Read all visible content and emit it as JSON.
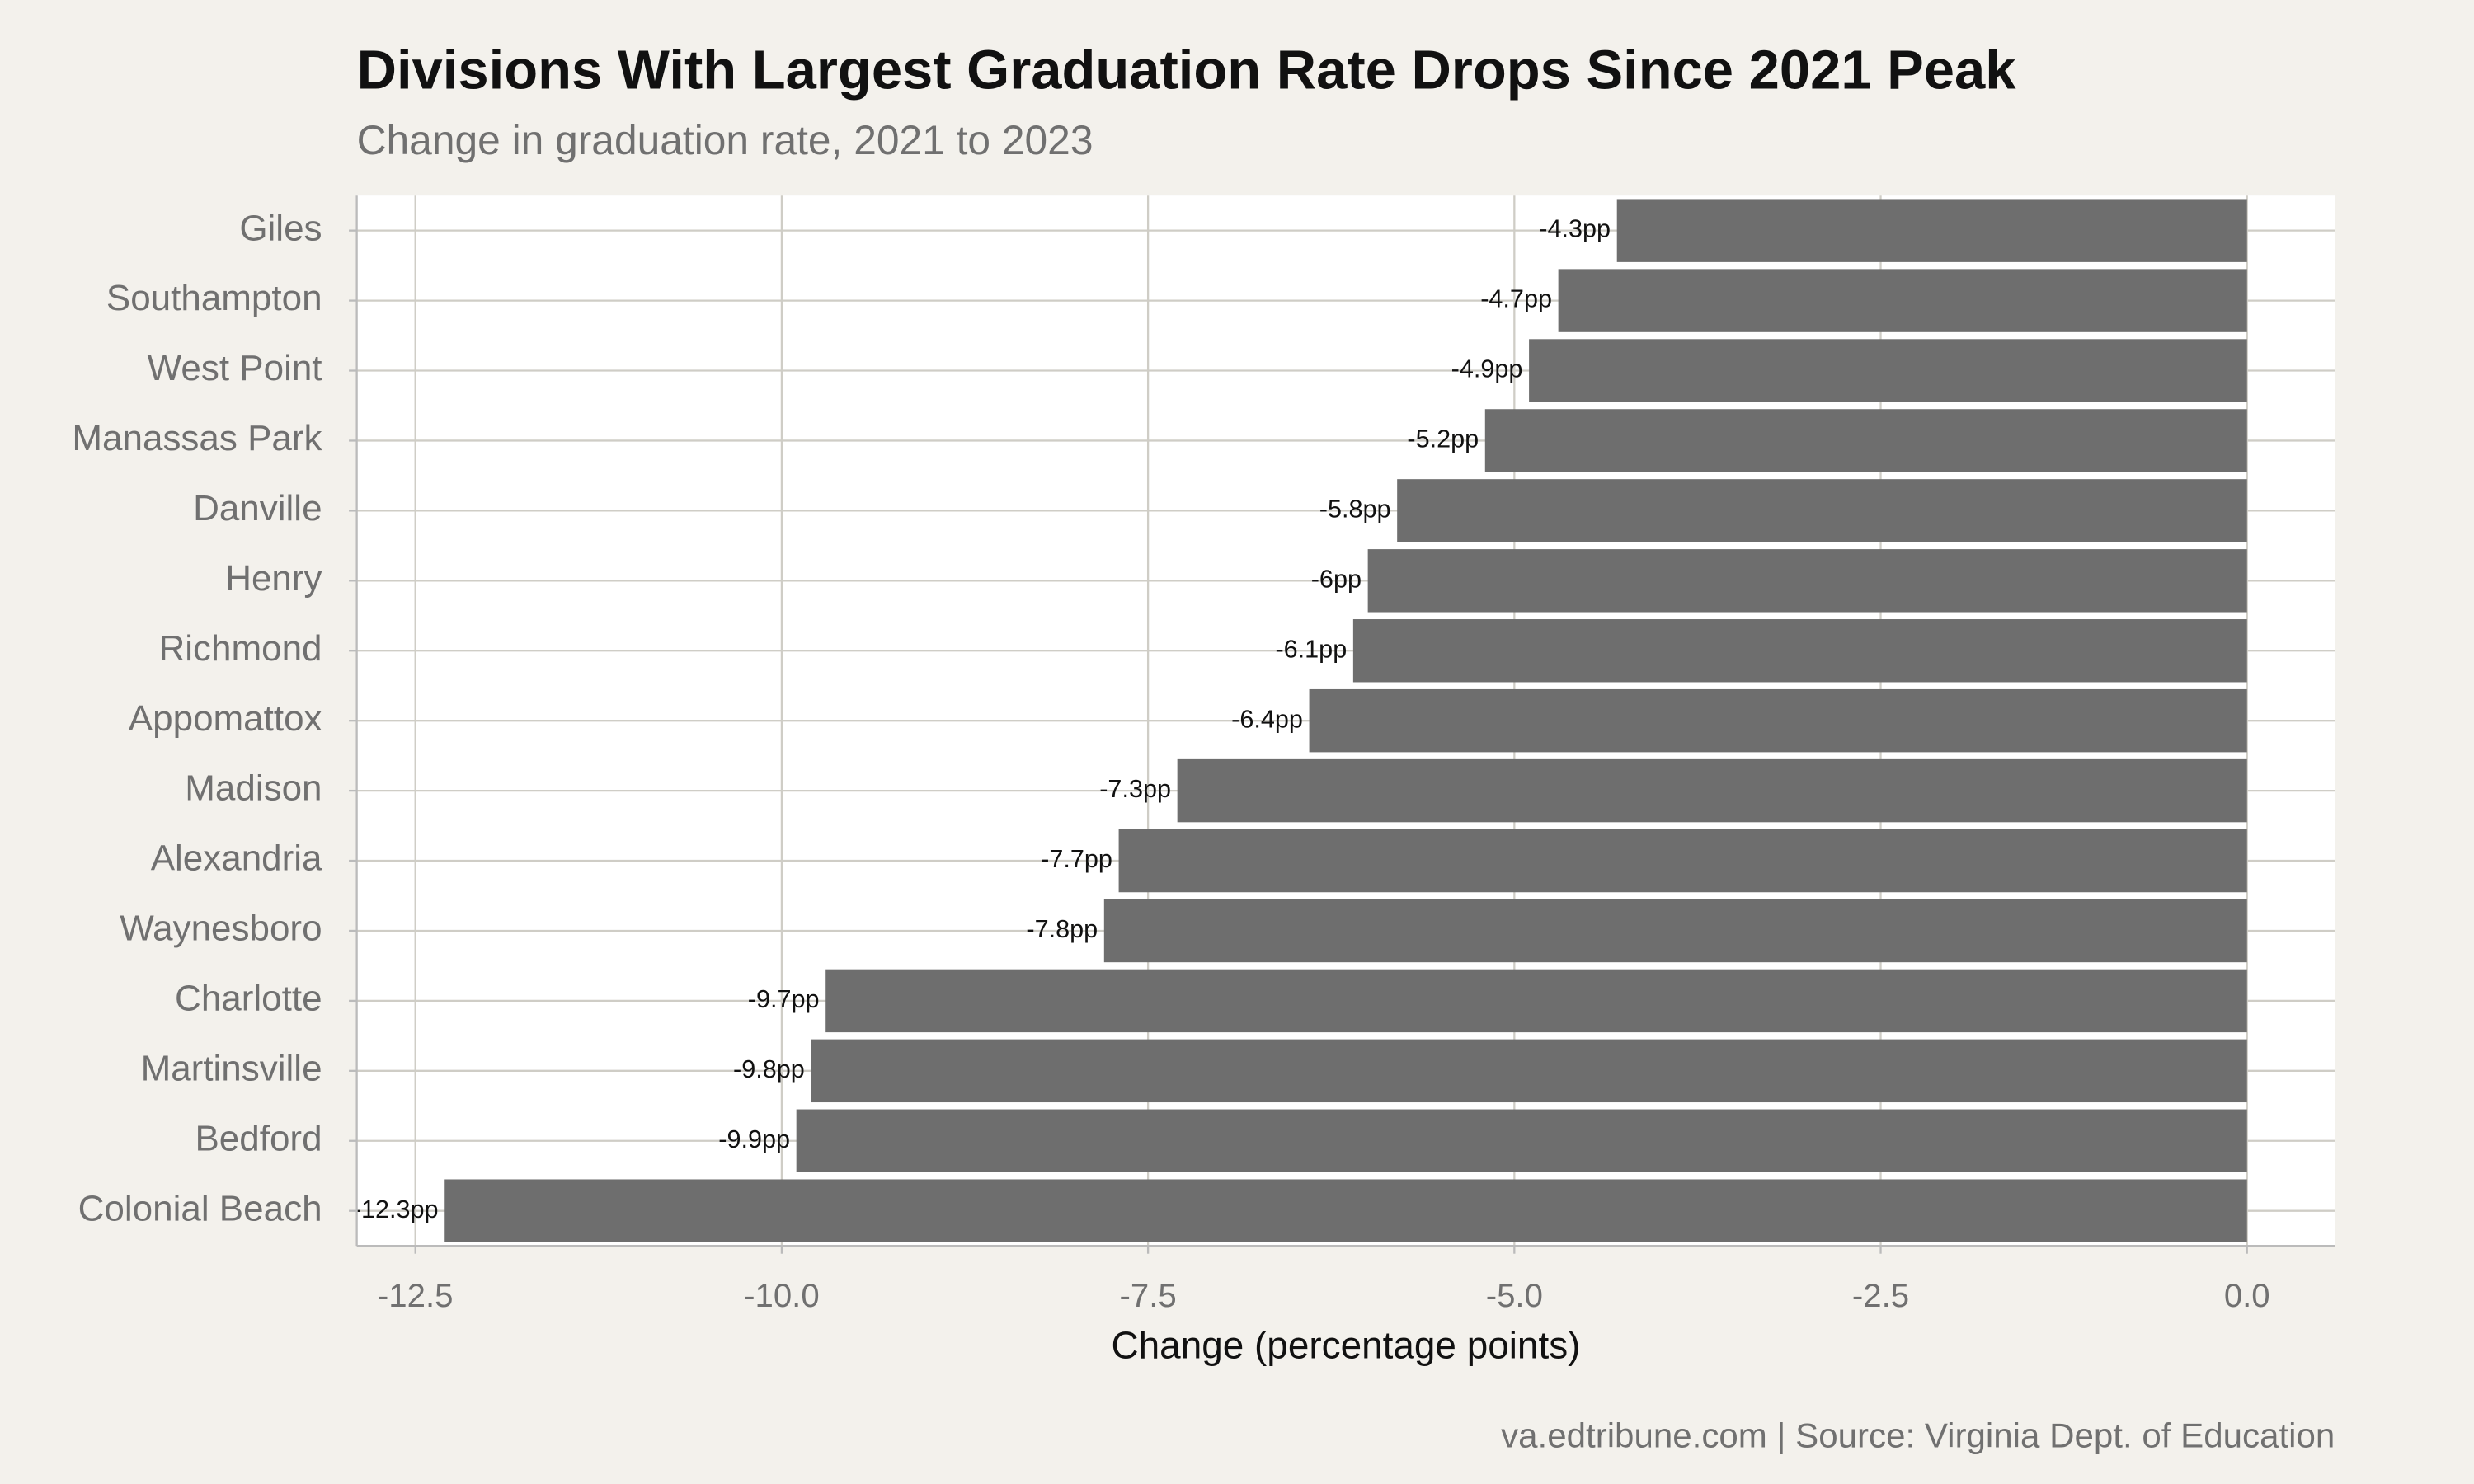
{
  "chart_data": {
    "type": "barh",
    "title": "Divisions With Largest Graduation Rate Drops Since 2021 Peak",
    "subtitle": "Change in graduation rate, 2021 to 2023",
    "x_label": "Change (percentage points)",
    "caption": "va.edtribune.com | Source: Virginia Dept. of Education",
    "categories": [
      "Giles",
      "Southampton",
      "West Point",
      "Manassas Park",
      "Danville",
      "Henry",
      "Richmond",
      "Appomattox",
      "Madison",
      "Alexandria",
      "Waynesboro",
      "Charlotte",
      "Martinsville",
      "Bedford",
      "Colonial Beach"
    ],
    "values": [
      -4.3,
      -4.7,
      -4.9,
      -5.2,
      -5.8,
      -6,
      -6.1,
      -6.4,
      -7.3,
      -7.7,
      -7.8,
      -9.7,
      -9.8,
      -9.9,
      -12.3
    ],
    "value_labels": [
      "-4.3pp",
      "-4.7pp",
      "-4.9pp",
      "-5.2pp",
      "-5.8pp",
      "-6pp",
      "-6.1pp",
      "-6.4pp",
      "-7.3pp",
      "-7.7pp",
      "-7.8pp",
      "-9.7pp",
      "-9.8pp",
      "-9.9pp",
      "-12.3pp"
    ],
    "color": "#6e6e6e",
    "xlim": [
      -12.9,
      0.6
    ],
    "xticks": [
      {
        "value": -12.5,
        "label": "-12.5"
      },
      {
        "value": -10,
        "label": "-10.0"
      },
      {
        "value": -7.5,
        "label": "-7.5"
      },
      {
        "value": -5,
        "label": "-5.0"
      },
      {
        "value": -2.5,
        "label": "-2.5"
      },
      {
        "value": 0,
        "label": "0.0"
      }
    ],
    "grid": true
  }
}
